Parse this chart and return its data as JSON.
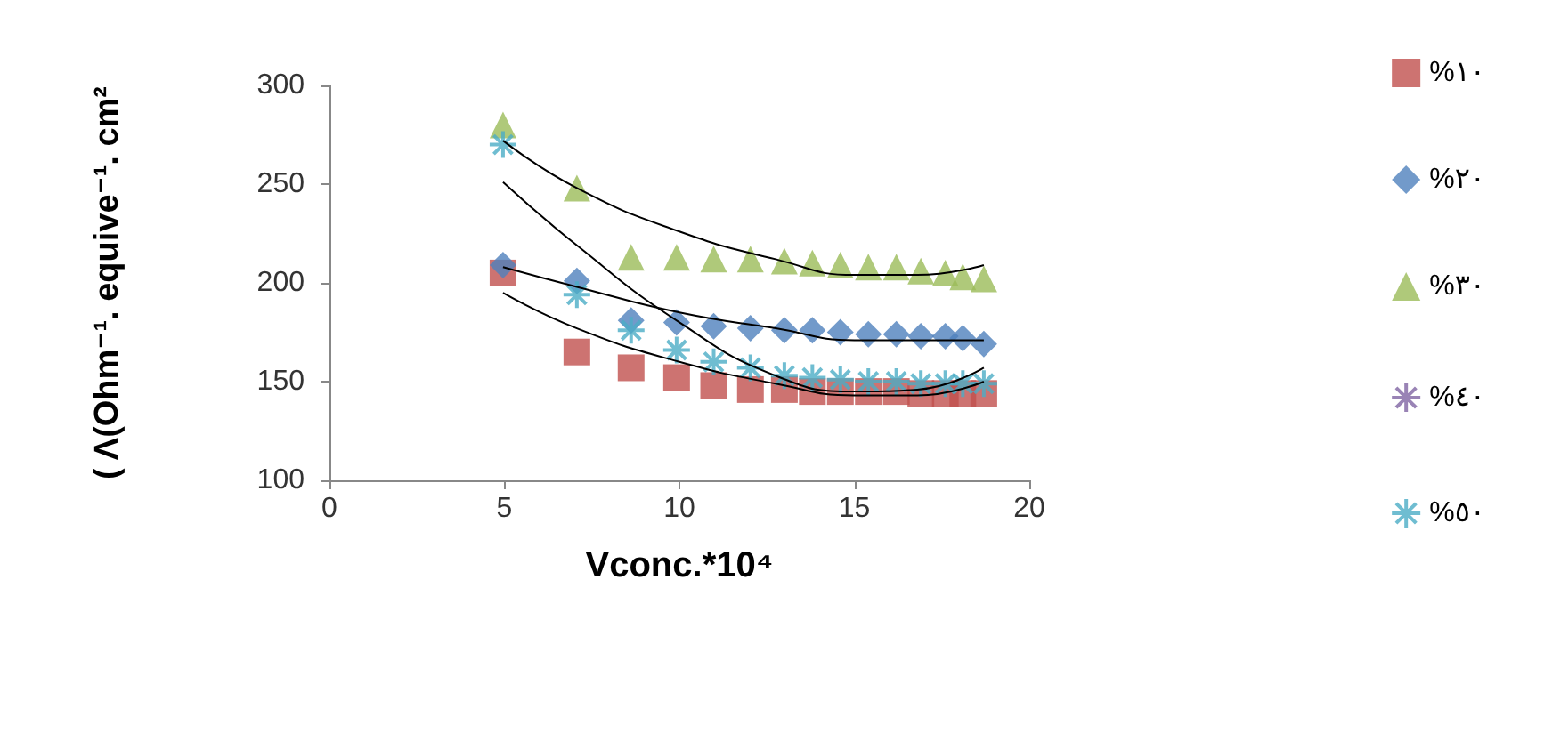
{
  "chart_data": {
    "type": "scatter",
    "xlabel": "Vconc.*10⁴",
    "ylabel": "( Λ(Ohm⁻¹. equive⁻¹. cm²",
    "xlim": [
      0,
      20
    ],
    "xticks": [
      0,
      5,
      10,
      15,
      20
    ],
    "ylim": [
      100,
      300
    ],
    "yticks": [
      100,
      150,
      200,
      250,
      300
    ],
    "grid": false,
    "legend": "right",
    "x": [
      4.96,
      7.07,
      8.62,
      9.92,
      10.98,
      12.03,
      13.0,
      13.8,
      14.6,
      15.4,
      16.2,
      16.9,
      17.6,
      18.1,
      18.7
    ],
    "series": [
      {
        "name": "%١٠",
        "color": "#c0504d",
        "marker": "square",
        "values": [
          205,
          165,
          157,
          152,
          148,
          146,
          146,
          145,
          145,
          145,
          145,
          144,
          144,
          144,
          144
        ]
      },
      {
        "name": "%٢٠",
        "color": "#4f81bd",
        "marker": "diamond",
        "values": [
          209,
          201,
          181,
          180,
          178,
          177,
          176,
          176,
          175,
          174,
          174,
          173,
          173,
          172,
          169
        ]
      },
      {
        "name": "%٣٠",
        "color": "#9bbb59",
        "marker": "triangle",
        "values": [
          280,
          248,
          213,
          213,
          212,
          212,
          211,
          210,
          209,
          208,
          208,
          206,
          205,
          203,
          202
        ]
      },
      {
        "name": "%٤٠",
        "color": "#8064a2",
        "marker": "cross",
        "values": [
          null,
          null,
          null,
          null,
          null,
          null,
          null,
          null,
          null,
          null,
          null,
          null,
          null,
          null,
          null
        ]
      },
      {
        "name": "%٥٠",
        "color": "#4bacc6",
        "marker": "cross",
        "values": [
          270,
          194,
          176,
          166,
          160,
          157,
          153,
          152,
          151,
          150,
          150,
          149,
          149,
          149,
          149
        ]
      },
      {
        "type": "line",
        "color": "#000000",
        "marker": "none",
        "x": [
          4.96,
          7.07,
          10,
          12.75,
          15,
          16.8,
          18.7
        ],
        "values": [
          272,
          248,
          226,
          212,
          204,
          204,
          209
        ]
      },
      {
        "type": "line",
        "color": "#000000",
        "marker": "none",
        "x": [
          4.96,
          7.07,
          10,
          12.75,
          15,
          16.8,
          18.7
        ],
        "values": [
          208,
          198,
          185,
          177,
          171,
          171,
          171
        ]
      },
      {
        "type": "line",
        "color": "#000000",
        "marker": "none",
        "x": [
          4.96,
          7.07,
          10,
          12.75,
          15,
          16.8,
          18.7
        ],
        "values": [
          195,
          177,
          160,
          149,
          143,
          143,
          150
        ]
      },
      {
        "type": "line",
        "color": "#000000",
        "marker": "none",
        "x": [
          4.96,
          7.07,
          10,
          12.75,
          15,
          16.8,
          18.7
        ],
        "values": [
          251,
          219,
          180,
          153,
          145,
          146,
          157
        ]
      }
    ]
  }
}
